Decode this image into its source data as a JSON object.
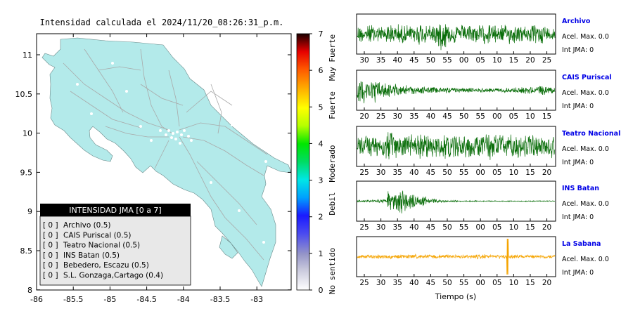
{
  "header": {
    "title": "Intensidad calculada el 2024/11/20_08:26:31_p.m."
  },
  "colors": {
    "land": "#b3eaea",
    "roads": "#a9a9a9",
    "wave_green": "#0a6e0a",
    "wave_orange": "#f5a400",
    "station_name": "#0000e6",
    "legend_header_bg": "#000000",
    "legend_body_bg": "#e8e8e8"
  },
  "map": {
    "x_ticks": [
      "-86",
      "-85.5",
      "-85",
      "-84.5",
      "-84",
      "-83.5",
      "-83"
    ],
    "y_ticks": [
      "11",
      "10.5",
      "10",
      "9.5",
      "9",
      "8.5",
      "8"
    ],
    "legend": {
      "title": "INTENSIDAD JMA [0 a 7]",
      "items": [
        {
          "level": "[ 0 ]",
          "name": "Archivo (0.5)"
        },
        {
          "level": "[ 0 ]",
          "name": "CAIS Puriscal (0.5)"
        },
        {
          "level": "[ 0 ]",
          "name": "Teatro Nacional (0.5)"
        },
        {
          "level": "[ 0 ]",
          "name": "INS Batan (0.5)"
        },
        {
          "level": "[ 0 ]",
          "name": "Bebedero, Escazu (0.5)"
        },
        {
          "level": "[ 0 ]",
          "name": "S.L. Gonzaga,Cartago (0.4)"
        }
      ]
    }
  },
  "colorbar": {
    "ticks": [
      "0",
      "1",
      "2",
      "3",
      "4",
      "5",
      "6",
      "7"
    ],
    "labels": [
      "No sentido",
      "Debil",
      "Moderado",
      "Fuerte",
      "Muy Fuerte"
    ],
    "colors": [
      "#ffffff",
      "#9595c8",
      "#1a1aff",
      "#00cdff",
      "#00e600",
      "#ffff00",
      "#ff8c00",
      "#ff0000",
      "#000000"
    ]
  },
  "waveforms": {
    "xlabel": "Tiempo (s)",
    "panels": [
      {
        "station": "Archivo",
        "accel": "Acel. Max. 0.0",
        "jma": "Int JMA: 0",
        "ticks": [
          "30",
          "35",
          "40",
          "45",
          "50",
          "55",
          "00",
          "05",
          "10",
          "15",
          "20",
          "25"
        ],
        "color": "green",
        "env": [
          0.55,
          0.6,
          0.5,
          0.62,
          0.58,
          0.55,
          0.7,
          0.6,
          0.9,
          0.6,
          0.55,
          0.6,
          0.58,
          0.6,
          0.55,
          0.6,
          0.5,
          0.55,
          0.6,
          0.45
        ]
      },
      {
        "station": "CAIS Puriscal",
        "accel": "Acel. Max. 0.0",
        "jma": "Int JMA: 0",
        "ticks": [
          "20",
          "25",
          "30",
          "35",
          "40",
          "45",
          "50",
          "55",
          "00",
          "05",
          "10",
          "15"
        ],
        "color": "green",
        "env": [
          0.8,
          0.75,
          0.55,
          0.4,
          0.3,
          0.25,
          0.22,
          0.2,
          0.18,
          0.18,
          0.15,
          0.14,
          0.13,
          0.12,
          0.14,
          0.15,
          0.18,
          0.22,
          0.28,
          0.25
        ]
      },
      {
        "station": "Teatro Nacional",
        "accel": "Acel. Max. 0.0",
        "jma": "Int JMA: 0",
        "ticks": [
          "25",
          "30",
          "35",
          "40",
          "45",
          "50",
          "55",
          "00",
          "05",
          "10",
          "15",
          "20"
        ],
        "color": "green",
        "env": [
          0.75,
          0.7,
          0.8,
          0.85,
          0.7,
          0.75,
          0.8,
          0.7,
          0.75,
          0.8,
          0.72,
          0.75,
          0.7,
          0.8,
          0.75,
          0.7,
          0.75,
          0.72,
          0.7,
          0.65
        ]
      },
      {
        "station": "INS Batan",
        "accel": "Acel. Max. 0.0",
        "jma": "Int JMA: 0",
        "ticks": [
          "25",
          "30",
          "35",
          "40",
          "45",
          "50",
          "55",
          "00",
          "05",
          "10",
          "15",
          "20"
        ],
        "color": "green",
        "env": [
          0.06,
          0.08,
          0.12,
          0.6,
          0.85,
          0.55,
          0.3,
          0.15,
          0.08,
          0.05,
          0.04,
          0.04,
          0.03,
          0.03,
          0.03,
          0.03,
          0.03,
          0.03,
          0.03,
          0.03
        ]
      },
      {
        "station": "La Sabana",
        "accel": "Acel. Max. 0.0",
        "jma": "Int JMA: 0",
        "ticks": [
          "25",
          "30",
          "35",
          "40",
          "45",
          "50",
          "55",
          "00",
          "05",
          "10",
          "15",
          "20"
        ],
        "color": "orange",
        "env": [
          0.12,
          0.12,
          0.13,
          0.12,
          0.12,
          0.13,
          0.12,
          0.12,
          0.12,
          0.13,
          0.12,
          0.12,
          0.15,
          0.12,
          0.12,
          0.12,
          0.12,
          0.12,
          0.12,
          0.12
        ],
        "spike": 0.76
      }
    ]
  }
}
